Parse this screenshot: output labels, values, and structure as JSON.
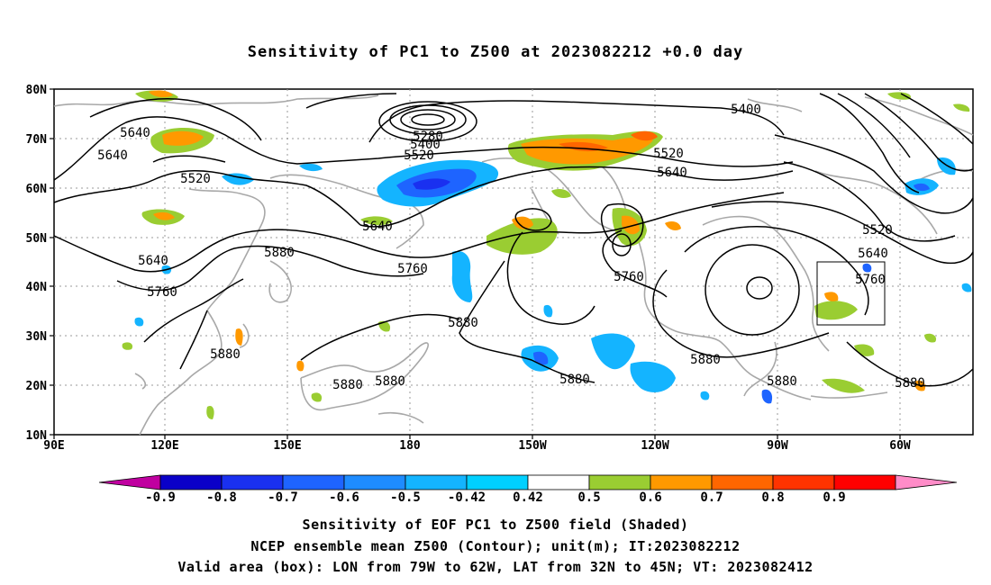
{
  "title": "Sensitivity of PC1 to Z500 at 2023082212 +0.0 day",
  "lat_labels": [
    "80N",
    "70N",
    "60N",
    "50N",
    "40N",
    "30N",
    "20N",
    "10N"
  ],
  "lon_labels": [
    "90E",
    "120E",
    "150E",
    "180",
    "150W",
    "120W",
    "90W",
    "60W"
  ],
  "contour_labels": [
    {
      "text": "5640"
    },
    {
      "text": "5640"
    },
    {
      "text": "5520"
    },
    {
      "text": "5520"
    },
    {
      "text": "5400"
    },
    {
      "text": "5280"
    },
    {
      "text": "5400"
    },
    {
      "text": "5520"
    },
    {
      "text": "5640"
    },
    {
      "text": "5640"
    },
    {
      "text": "5760"
    },
    {
      "text": "5880"
    },
    {
      "text": "5640"
    },
    {
      "text": "5760"
    },
    {
      "text": "5880"
    },
    {
      "text": "5880"
    },
    {
      "text": "5760"
    },
    {
      "text": "5520"
    },
    {
      "text": "5640"
    },
    {
      "text": "5760"
    },
    {
      "text": "5880"
    },
    {
      "text": "5880"
    },
    {
      "text": "5880"
    },
    {
      "text": "5880"
    },
    {
      "text": "5880"
    },
    {
      "text": "5880"
    }
  ],
  "colorbar": {
    "labels": [
      "-0.9",
      "-0.8",
      "-0.7",
      "-0.6",
      "-0.5",
      "-0.42",
      "0.42",
      "0.5",
      "0.6",
      "0.7",
      "0.8",
      "0.9"
    ],
    "colors": [
      "#c000a0",
      "#0a00c8",
      "#1a30f0",
      "#1e64ff",
      "#1e8cff",
      "#14b4ff",
      "#00d0ff",
      "#ffffff",
      "#9acd32",
      "#ff9900",
      "#ff6600",
      "#ff3300",
      "#ff0000",
      "#ff8cc8"
    ]
  },
  "valid_box": {
    "lon": "79W to 62W",
    "lat": "32N to 45N"
  },
  "footer": [
    "Sensitivity of EOF PC1 to Z500 field (Shaded)",
    "NCEP ensemble mean Z500 (Contour); unit(m); IT:2023082212",
    "Valid area (box): LON from 79W to 62W, LAT from 32N to 45N; VT: 2023082412"
  ]
}
